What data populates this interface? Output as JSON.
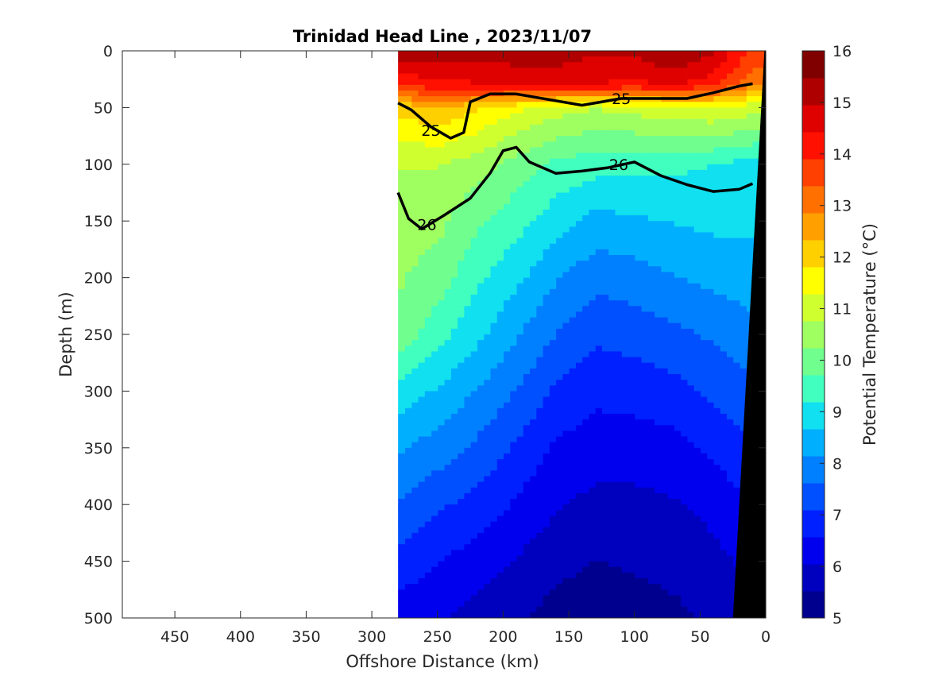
{
  "chart_data": {
    "type": "heatmap",
    "title": "Trinidad Head Line , 2023/11/07",
    "xlabel": "Offshore Distance (km)",
    "ylabel": "Depth (m)",
    "x_reversed": true,
    "xlim": [
      0,
      490
    ],
    "ylim": [
      0,
      500
    ],
    "y_reversed": true,
    "x_ticks": [
      450,
      400,
      350,
      300,
      250,
      200,
      150,
      100,
      50,
      0
    ],
    "y_ticks": [
      0,
      50,
      100,
      150,
      200,
      250,
      300,
      350,
      400,
      450,
      500
    ],
    "colorbar": {
      "label": "Potential Temperature (°C)",
      "range": [
        5,
        16
      ],
      "ticks": [
        5,
        6,
        7,
        8,
        9,
        10,
        11,
        12,
        13,
        14,
        15,
        16
      ],
      "colors": [
        "#00008f",
        "#0000bf",
        "#0000ef",
        "#0020ff",
        "#0050ff",
        "#0080ff",
        "#00b0ff",
        "#10e0ef",
        "#40ffbf",
        "#70ff8f",
        "#a0ff60",
        "#d0ff30",
        "#ffff00",
        "#ffd000",
        "#ffa000",
        "#ff7000",
        "#ff4000",
        "#ff1000",
        "#df0000",
        "#af0000",
        "#800000"
      ]
    },
    "section_extent_km": [
      10,
      280
    ],
    "grid": false,
    "temperature_profiles": [
      {
        "x": 280,
        "depth": [
          0,
          30,
          50,
          100,
          150,
          200,
          250,
          300,
          350,
          400,
          450,
          500
        ],
        "temp": [
          15.4,
          14.0,
          12.0,
          10.8,
          10.5,
          10.3,
          10.1,
          9.0,
          8.2,
          7.6,
          6.9,
          6.3
        ]
      },
      {
        "x": 250,
        "depth": [
          0,
          30,
          50,
          100,
          150,
          200,
          250,
          300,
          350,
          400,
          450,
          500
        ],
        "temp": [
          15.4,
          14.2,
          12.3,
          10.8,
          10.4,
          10.0,
          9.4,
          8.6,
          7.9,
          7.2,
          6.6,
          6.1
        ]
      },
      {
        "x": 220,
        "depth": [
          0,
          30,
          50,
          100,
          150,
          200,
          250,
          300,
          350,
          400,
          450,
          500
        ],
        "temp": [
          15.2,
          14.4,
          11.9,
          10.5,
          9.8,
          9.3,
          8.8,
          8.1,
          7.5,
          6.9,
          6.3,
          5.8
        ]
      },
      {
        "x": 190,
        "depth": [
          0,
          30,
          50,
          100,
          150,
          200,
          250,
          300,
          350,
          400,
          450,
          500
        ],
        "temp": [
          15.3,
          14.5,
          11.4,
          10.0,
          9.4,
          8.8,
          8.2,
          7.6,
          7.0,
          6.5,
          6.0,
          5.6
        ]
      },
      {
        "x": 160,
        "depth": [
          0,
          30,
          50,
          100,
          150,
          200,
          250,
          300,
          350,
          400,
          450,
          500
        ],
        "temp": [
          15.3,
          14.6,
          11.0,
          9.6,
          8.9,
          8.2,
          7.6,
          7.0,
          6.5,
          6.1,
          5.7,
          5.3
        ]
      },
      {
        "x": 130,
        "depth": [
          0,
          30,
          50,
          100,
          150,
          200,
          250,
          300,
          350,
          400,
          450,
          500
        ],
        "temp": [
          15.0,
          14.4,
          10.8,
          9.4,
          8.5,
          7.8,
          7.2,
          6.7,
          6.3,
          5.9,
          5.5,
          5.2
        ]
      },
      {
        "x": 100,
        "depth": [
          0,
          30,
          50,
          100,
          150,
          200,
          250,
          300,
          350,
          400,
          450,
          500
        ],
        "temp": [
          15.1,
          14.3,
          11.0,
          9.3,
          8.6,
          7.9,
          7.3,
          6.8,
          6.3,
          5.9,
          5.6,
          5.3
        ]
      },
      {
        "x": 70,
        "depth": [
          0,
          30,
          50,
          100,
          150,
          200,
          250,
          300,
          350,
          400,
          450,
          500
        ],
        "temp": [
          15.6,
          14.5,
          11.1,
          9.3,
          8.7,
          8.1,
          7.5,
          6.9,
          6.4,
          6.0,
          5.7,
          5.4
        ]
      },
      {
        "x": 40,
        "depth": [
          0,
          30,
          50,
          100,
          150,
          200,
          250,
          300,
          350,
          400,
          450,
          500
        ],
        "temp": [
          15.0,
          14.1,
          11.3,
          9.2,
          8.8,
          8.3,
          7.7,
          7.2,
          6.7,
          6.2,
          5.9,
          5.6
        ]
      },
      {
        "x": 10,
        "depth": [
          0,
          30,
          50,
          100,
          150,
          200,
          250,
          300,
          350,
          400,
          450,
          500
        ],
        "temp": [
          13.8,
          13.0,
          11.0,
          9.0,
          8.8,
          8.4,
          8.0,
          7.5,
          7.0,
          6.6,
          6.2,
          5.9
        ]
      }
    ],
    "density_contours": [
      {
        "label": "25",
        "label_positions": [
          [
            255,
            70
          ],
          [
            110,
            42
          ]
        ],
        "x": [
          280,
          270,
          255,
          240,
          230,
          225,
          210,
          190,
          160,
          140,
          110,
          90,
          60,
          40,
          20,
          10
        ],
        "depth": [
          46,
          52,
          67,
          77,
          72,
          45,
          38,
          38,
          44,
          48,
          42,
          42,
          42,
          37,
          31,
          29
        ]
      },
      {
        "label": "26",
        "label_positions": [
          [
            258,
            153
          ],
          [
            112,
            100
          ]
        ],
        "x": [
          280,
          272,
          262,
          245,
          225,
          210,
          200,
          190,
          180,
          160,
          140,
          120,
          100,
          80,
          60,
          40,
          20,
          10
        ],
        "depth": [
          125,
          148,
          157,
          145,
          130,
          108,
          88,
          85,
          98,
          108,
          106,
          103,
          98,
          110,
          118,
          124,
          122,
          117
        ]
      }
    ],
    "bathymetry": {
      "x": [
        0,
        0,
        25,
        1,
        0
      ],
      "depth": [
        0,
        500,
        500,
        0,
        0
      ],
      "fill": "#000000"
    }
  }
}
